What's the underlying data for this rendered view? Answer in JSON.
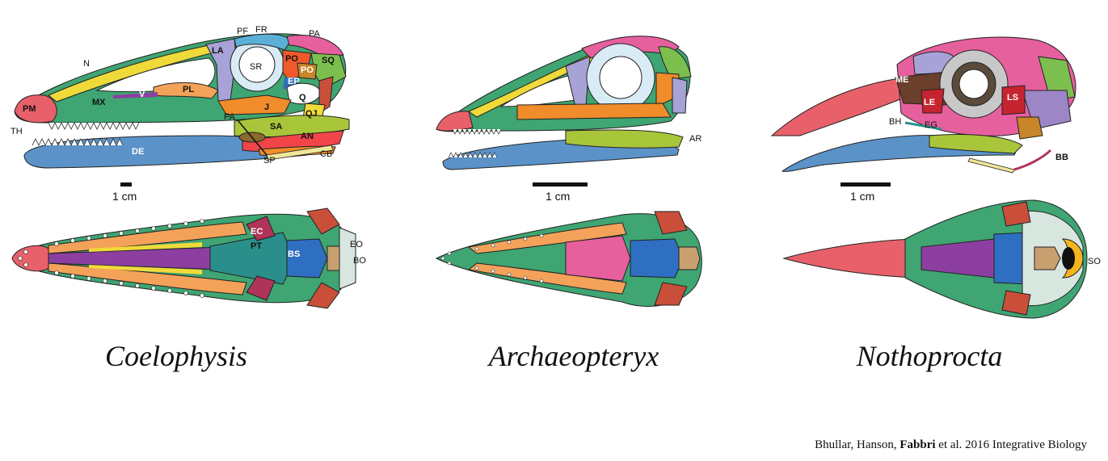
{
  "taxa": [
    {
      "name": "Coelophysis",
      "scale": "1 cm"
    },
    {
      "name": "Archaeopteryx",
      "scale": "1 cm"
    },
    {
      "name": "Nothoprocta",
      "scale": "1 cm"
    }
  ],
  "labels": {
    "coelophysis": [
      "PF",
      "FR",
      "PA",
      "N",
      "LA",
      "SR",
      "PO",
      "SQ",
      "PO",
      "EP",
      "PM",
      "MX",
      "V",
      "PL",
      "Q",
      "J",
      "QJ",
      "TH",
      "PA",
      "SA",
      "AN",
      "DE",
      "SP",
      "CB",
      "EC",
      "PT",
      "BS",
      "EO",
      "BO"
    ],
    "archaeopteryx": [
      "AR"
    ],
    "nothoprocta": [
      "ME",
      "LE",
      "LS",
      "BH",
      "EG",
      "BB",
      "SO"
    ]
  },
  "credit": {
    "before": "Bhullar, Hanson, ",
    "bold": "Fabbri",
    "after": " et al. 2016 Integrative Biology"
  },
  "colors": {
    "premaxilla": "#e8606a",
    "maxilla": "#3fa572",
    "dentary": "#5b93c9",
    "nasal": "#f0da3a",
    "lacrimal": "#a7a3d6",
    "palatine": "#f4a25a",
    "vomer": "#8c3fa0",
    "jugal": "#f08c2a",
    "quadrate": "#c94f3a",
    "squamosal": "#7dbf4f",
    "parietal": "#e6609e",
    "frontal": "#5bb0d6",
    "postorbital": "#f05a2a",
    "surangular": "#a9c63b",
    "angular": "#f2454a",
    "ceratobranchial": "#f2e69a",
    "basisphenoid": "#2f6fc1",
    "pterygoid": "#2a8f8a",
    "ectopterygoid": "#b0345a",
    "occipital": "#c8a070",
    "exoccipital": "#d8e6e0",
    "laterosphenoid": "#c62330",
    "mesethmoid": "#6b3f2b",
    "supraoccipital": "#f5b51e"
  }
}
